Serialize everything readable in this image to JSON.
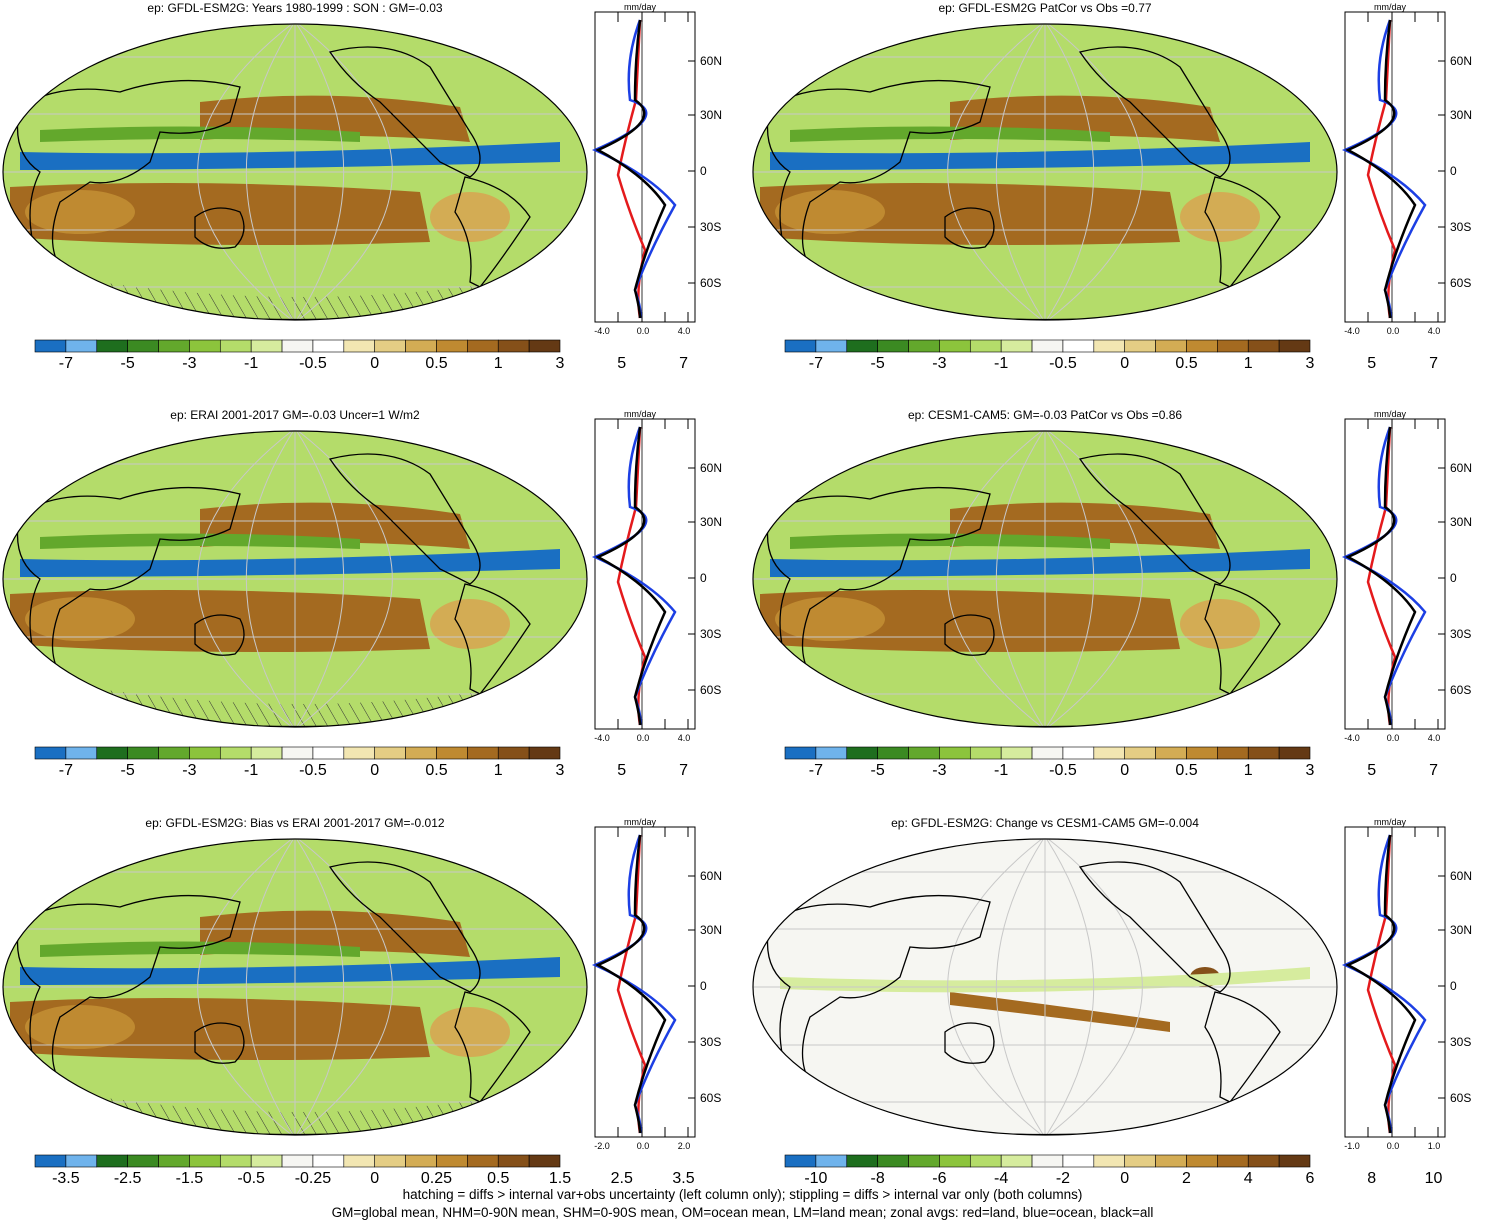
{
  "panels": [
    {
      "id": "a",
      "title": "ep: GFDL-ESM2G: Years 1980-1999 : SON : GM=-0.03",
      "hatch": true,
      "cb_labels": [
        "-7",
        "-5",
        "-3",
        "-1",
        "-0.5",
        "0",
        "0.5",
        "1",
        "3",
        "5",
        "7"
      ],
      "za_unit": "mm/day",
      "za_ticks": [
        "-4.0",
        "0.0",
        "4.0"
      ],
      "lat_labels": [
        "60N",
        "30N",
        "0",
        "30S",
        "60S"
      ]
    },
    {
      "id": "b",
      "title": "ep: GFDL-ESM2G PatCor vs Obs =0.77",
      "hatch": false,
      "cb_labels": [
        "-7",
        "-5",
        "-3",
        "-1",
        "-0.5",
        "0",
        "0.5",
        "1",
        "3",
        "5",
        "7"
      ],
      "za_unit": "mm/day",
      "za_ticks": [
        "-4.0",
        "0.0",
        "4.0"
      ],
      "lat_labels": [
        "60N",
        "30N",
        "0",
        "30S",
        "60S"
      ]
    },
    {
      "id": "c",
      "title": "ep: ERAI 2001-2017 GM=-0.03 Uncer=1 W/m2",
      "hatch": true,
      "cb_labels": [
        "-7",
        "-5",
        "-3",
        "-1",
        "-0.5",
        "0",
        "0.5",
        "1",
        "3",
        "5",
        "7"
      ],
      "za_unit": "mm/day",
      "za_ticks": [
        "-4.0",
        "0.0",
        "4.0"
      ],
      "lat_labels": [
        "60N",
        "30N",
        "0",
        "30S",
        "60S"
      ]
    },
    {
      "id": "d",
      "title": "ep: CESM1-CAM5: GM=-0.03 PatCor vs Obs =0.86",
      "hatch": false,
      "cb_labels": [
        "-7",
        "-5",
        "-3",
        "-1",
        "-0.5",
        "0",
        "0.5",
        "1",
        "3",
        "5",
        "7"
      ],
      "za_unit": "mm/day",
      "za_ticks": [
        "-4.0",
        "0.0",
        "4.0"
      ],
      "lat_labels": [
        "60N",
        "30N",
        "0",
        "30S",
        "60S"
      ]
    },
    {
      "id": "e",
      "title": "ep: GFDL-ESM2G: Bias vs ERAI 2001-2017  GM=-0.012",
      "hatch": true,
      "cb_labels": [
        "-3.5",
        "-2.5",
        "-1.5",
        "-0.5",
        "-0.25",
        "0",
        "0.25",
        "0.5",
        "1.5",
        "2.5",
        "3.5"
      ],
      "za_unit": "mm/day",
      "za_ticks": [
        "-2.0",
        "0.0",
        "2.0"
      ],
      "lat_labels": [
        "60N",
        "30N",
        "0",
        "30S",
        "60S"
      ]
    },
    {
      "id": "f",
      "title": "ep: GFDL-ESM2G: Change vs CESM1-CAM5 GM=-0.004",
      "hatch": false,
      "cb_labels": [
        "-10",
        "-8",
        "-6",
        "-4",
        "-2",
        "0",
        "2",
        "4",
        "6",
        "8",
        "10"
      ],
      "za_unit": "mm/day",
      "za_ticks": [
        "-1.0",
        "0.0",
        "1.0"
      ],
      "lat_labels": [
        "60N",
        "30N",
        "0",
        "30S",
        "60S"
      ]
    }
  ],
  "colorbar_colors": [
    "#1a6fc2",
    "#6fb3ec",
    "#1e6e1e",
    "#3b8a22",
    "#63a82c",
    "#8cc43c",
    "#b4dc6a",
    "#d6ec9e",
    "#f6f6f2",
    "#ffffff",
    "#f2e6b2",
    "#e4cd84",
    "#d3ac54",
    "#bf8a31",
    "#a46a20",
    "#855019",
    "#643914"
  ],
  "footnote": {
    "line1": "hatching = diffs > internal var+obs uncertainty (left column only); stippling = diffs > internal var only (both columns)",
    "line2": "GM=global mean, NHM=0-90N mean, SHM=0-90S mean, OM=ocean mean, LM=land mean; zonal avgs: red=land, blue=ocean, black=all"
  }
}
